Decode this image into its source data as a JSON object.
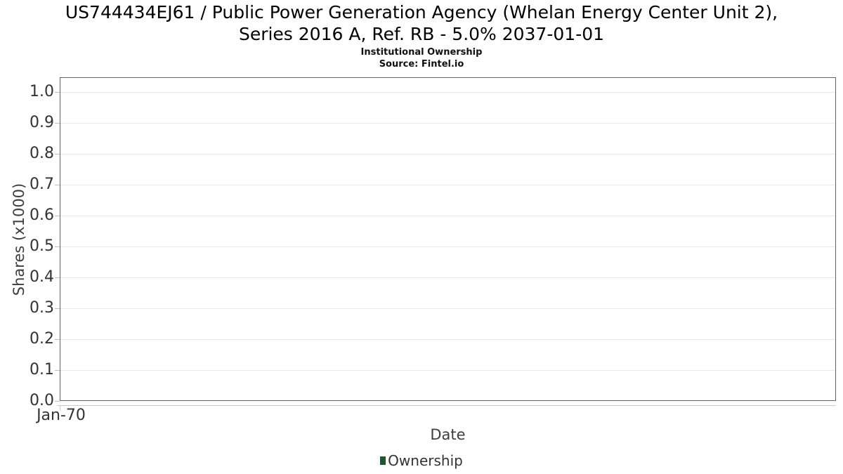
{
  "title": {
    "lines": [
      "US744434EJ61 / Public Power Generation Agency (Whelan Energy Center Unit 2),",
      "Series 2016 A, Ref. RB - 5.0% 2037-01-01"
    ]
  },
  "subtitle": "Institutional Ownership",
  "source": "Source: Fintel.io",
  "legend": {
    "items": [
      {
        "label": "Ownership",
        "marker_color": "#26522f"
      }
    ]
  },
  "chart_data": {
    "type": "line",
    "title": "US744434EJ61 / Public Power Generation Agency (Whelan Energy Center Unit 2), Series 2016 A, Ref. RB - 5.0% 2037-01-01",
    "subtitle": "Institutional Ownership",
    "source": "Source: Fintel.io",
    "xlabel": "Date",
    "ylabel": "Shares (x1000)",
    "x_tick_labels": [
      "Jan-70"
    ],
    "y_tick_labels": [
      "0.0",
      "0.1",
      "0.2",
      "0.3",
      "0.4",
      "0.5",
      "0.6",
      "0.7",
      "0.8",
      "0.9",
      "1.0"
    ],
    "ylim": [
      0.0,
      1.05
    ],
    "grid": "horizontal",
    "legend_position": "bottom-center",
    "series": [
      {
        "name": "Ownership",
        "color": "#26522f",
        "x": [],
        "values": []
      }
    ]
  },
  "colors": {
    "background": "#ffffff",
    "plot_border": "#636363",
    "gridline": "#e8e8e8",
    "axis_line": "#c9c9c9",
    "tick_mark": "#c0c0c0",
    "tick_label": "#333333",
    "axis_title": "#3d3d3d",
    "title_text": "#000000",
    "legend_marker": "#26522f",
    "legend_text": "#333333"
  }
}
